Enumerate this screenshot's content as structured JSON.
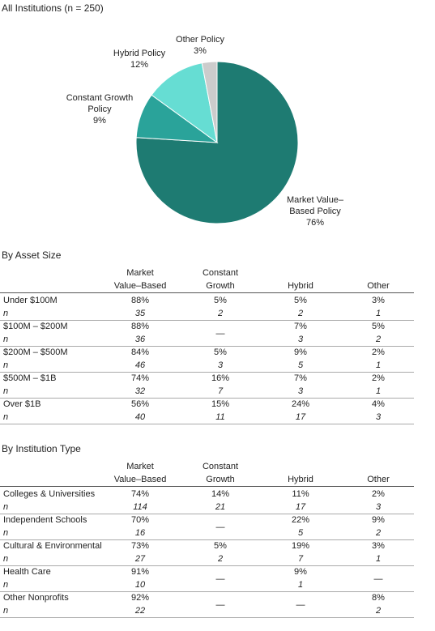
{
  "chart_data": {
    "type": "pie",
    "title": "All Institutions (n = 250)",
    "categories": [
      "Market Value–Based Policy",
      "Constant Growth Policy",
      "Hybrid Policy",
      "Other Policy"
    ],
    "values": [
      76,
      9,
      12,
      3
    ],
    "value_labels": [
      "76%",
      "9%",
      "12%",
      "3%"
    ],
    "colors": [
      "#1e7b72",
      "#2aa39a",
      "#66ddd3",
      "#cccccc"
    ]
  },
  "tables": [
    {
      "title": "By Asset Size",
      "n_label": "n",
      "columns": [
        [
          "Market",
          "Value–Based"
        ],
        [
          "Constant",
          "Growth"
        ],
        [
          "Hybrid"
        ],
        [
          "Other"
        ]
      ],
      "rows": [
        {
          "label": "Under $100M",
          "values": [
            "88%",
            "5%",
            "5%",
            "3%"
          ],
          "n": [
            "35",
            "2",
            "2",
            "1"
          ]
        },
        {
          "label": "$100M – $200M",
          "values": [
            "88%",
            "—",
            "7%",
            "5%"
          ],
          "n": [
            "36",
            null,
            "3",
            "2"
          ]
        },
        {
          "label": "$200M – $500M",
          "values": [
            "84%",
            "5%",
            "9%",
            "2%"
          ],
          "n": [
            "46",
            "3",
            "5",
            "1"
          ]
        },
        {
          "label": "$500M – $1B",
          "values": [
            "74%",
            "16%",
            "7%",
            "2%"
          ],
          "n": [
            "32",
            "7",
            "3",
            "1"
          ]
        },
        {
          "label": "Over $1B",
          "values": [
            "56%",
            "15%",
            "24%",
            "4%"
          ],
          "n": [
            "40",
            "11",
            "17",
            "3"
          ]
        }
      ]
    },
    {
      "title": "By Institution Type",
      "n_label": "n",
      "columns": [
        [
          "Market",
          "Value–Based"
        ],
        [
          "Constant",
          "Growth"
        ],
        [
          "Hybrid"
        ],
        [
          "Other"
        ]
      ],
      "rows": [
        {
          "label": "Colleges & Universities",
          "values": [
            "74%",
            "14%",
            "11%",
            "2%"
          ],
          "n": [
            "114",
            "21",
            "17",
            "3"
          ]
        },
        {
          "label": "Independent Schools",
          "values": [
            "70%",
            "—",
            "22%",
            "9%"
          ],
          "n": [
            "16",
            null,
            "5",
            "2"
          ]
        },
        {
          "label": "Cultural & Environmental",
          "values": [
            "73%",
            "5%",
            "19%",
            "3%"
          ],
          "n": [
            "27",
            "2",
            "7",
            "1"
          ]
        },
        {
          "label": "Health Care",
          "values": [
            "91%",
            "—",
            "9%",
            "—"
          ],
          "n": [
            "10",
            null,
            "1",
            null
          ]
        },
        {
          "label": "Other Nonprofits",
          "values": [
            "92%",
            "—",
            "—",
            "8%"
          ],
          "n": [
            "22",
            null,
            null,
            "2"
          ]
        }
      ]
    }
  ]
}
